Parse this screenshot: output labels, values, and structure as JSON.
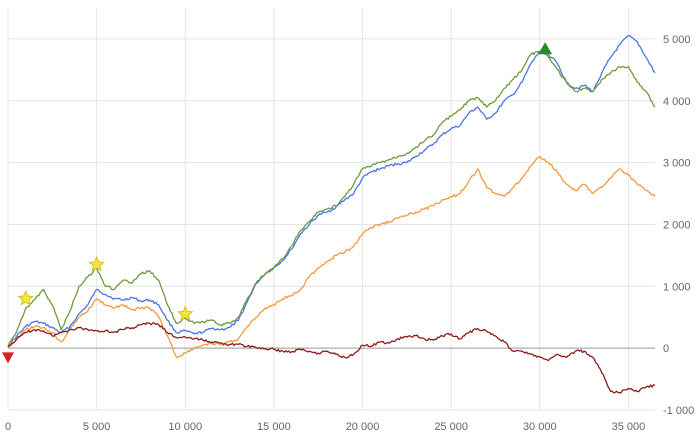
{
  "chart_data": {
    "type": "line",
    "title": "",
    "xlabel": "",
    "ylabel": "",
    "xlim": [
      0,
      36500
    ],
    "ylim": [
      -1000,
      5500
    ],
    "grid": true,
    "legend": "none",
    "x_ticks": [
      {
        "value": 0,
        "label": "0"
      },
      {
        "value": 5000,
        "label": "5 000"
      },
      {
        "value": 10000,
        "label": "10 000"
      },
      {
        "value": 15000,
        "label": "15 000"
      },
      {
        "value": 20000,
        "label": "20 000"
      },
      {
        "value": 25000,
        "label": "25 000"
      },
      {
        "value": 30000,
        "label": "30 000"
      },
      {
        "value": 35000,
        "label": "35 000"
      }
    ],
    "y_ticks": [
      {
        "value": 5000,
        "label": "5 000"
      },
      {
        "value": 4000,
        "label": "4 000"
      },
      {
        "value": 3000,
        "label": "3 000"
      },
      {
        "value": 2000,
        "label": "2 000"
      },
      {
        "value": 1000,
        "label": "1 000"
      },
      {
        "value": 0,
        "label": "0"
      },
      {
        "value": -1000,
        "label": "-1 000"
      }
    ],
    "series": [
      {
        "color": "#4a76e8",
        "points": [
          [
            0,
            20
          ],
          [
            500,
            200
          ],
          [
            1000,
            350
          ],
          [
            1500,
            430
          ],
          [
            2000,
            400
          ],
          [
            2500,
            330
          ],
          [
            3000,
            250
          ],
          [
            3500,
            350
          ],
          [
            4000,
            550
          ],
          [
            4500,
            700
          ],
          [
            5000,
            950
          ],
          [
            5500,
            870
          ],
          [
            6000,
            800
          ],
          [
            6500,
            780
          ],
          [
            7000,
            820
          ],
          [
            7500,
            760
          ],
          [
            8000,
            780
          ],
          [
            8500,
            700
          ],
          [
            9000,
            450
          ],
          [
            9500,
            250
          ],
          [
            10000,
            280
          ],
          [
            10500,
            230
          ],
          [
            11000,
            260
          ],
          [
            11500,
            320
          ],
          [
            12000,
            300
          ],
          [
            12500,
            330
          ],
          [
            13000,
            450
          ],
          [
            13500,
            750
          ],
          [
            14000,
            1050
          ],
          [
            14500,
            1200
          ],
          [
            15000,
            1300
          ],
          [
            15500,
            1420
          ],
          [
            16000,
            1600
          ],
          [
            16500,
            1850
          ],
          [
            17000,
            2000
          ],
          [
            17500,
            2150
          ],
          [
            18000,
            2200
          ],
          [
            18500,
            2280
          ],
          [
            19000,
            2400
          ],
          [
            19500,
            2500
          ],
          [
            20000,
            2750
          ],
          [
            20500,
            2850
          ],
          [
            21000,
            2900
          ],
          [
            21500,
            2950
          ],
          [
            22000,
            2980
          ],
          [
            22500,
            3000
          ],
          [
            23000,
            3100
          ],
          [
            23500,
            3200
          ],
          [
            24000,
            3300
          ],
          [
            24500,
            3450
          ],
          [
            25000,
            3550
          ],
          [
            25500,
            3600
          ],
          [
            26000,
            3800
          ],
          [
            26500,
            3900
          ],
          [
            27000,
            3700
          ],
          [
            27500,
            3800
          ],
          [
            28000,
            4000
          ],
          [
            28500,
            4100
          ],
          [
            29000,
            4300
          ],
          [
            29500,
            4600
          ],
          [
            30000,
            4800
          ],
          [
            30500,
            4750
          ],
          [
            31000,
            4600
          ],
          [
            31500,
            4300
          ],
          [
            32000,
            4200
          ],
          [
            32500,
            4250
          ],
          [
            33000,
            4150
          ],
          [
            33500,
            4450
          ],
          [
            34000,
            4700
          ],
          [
            34500,
            4900
          ],
          [
            35000,
            5050
          ],
          [
            35500,
            4950
          ],
          [
            36000,
            4700
          ],
          [
            36500,
            4450
          ]
        ]
      },
      {
        "color": "#6f9a3e",
        "points": [
          [
            0,
            30
          ],
          [
            500,
            280
          ],
          [
            1000,
            650
          ],
          [
            1500,
            780
          ],
          [
            2000,
            950
          ],
          [
            2500,
            700
          ],
          [
            3000,
            300
          ],
          [
            3500,
            600
          ],
          [
            4000,
            1000
          ],
          [
            4500,
            1150
          ],
          [
            5000,
            1300
          ],
          [
            5500,
            1000
          ],
          [
            6000,
            950
          ],
          [
            6500,
            1100
          ],
          [
            7000,
            1050
          ],
          [
            7500,
            1200
          ],
          [
            8000,
            1250
          ],
          [
            8500,
            1100
          ],
          [
            9000,
            700
          ],
          [
            9500,
            400
          ],
          [
            10000,
            480
          ],
          [
            10500,
            400
          ],
          [
            11000,
            430
          ],
          [
            11500,
            450
          ],
          [
            12000,
            380
          ],
          [
            12500,
            400
          ],
          [
            13000,
            500
          ],
          [
            13500,
            800
          ],
          [
            14000,
            1050
          ],
          [
            14500,
            1200
          ],
          [
            15000,
            1300
          ],
          [
            15500,
            1450
          ],
          [
            16000,
            1650
          ],
          [
            16500,
            1900
          ],
          [
            17000,
            2050
          ],
          [
            17500,
            2200
          ],
          [
            18000,
            2250
          ],
          [
            18500,
            2300
          ],
          [
            19000,
            2450
          ],
          [
            19500,
            2650
          ],
          [
            20000,
            2900
          ],
          [
            20500,
            2950
          ],
          [
            21000,
            3000
          ],
          [
            21500,
            3050
          ],
          [
            22000,
            3100
          ],
          [
            22500,
            3150
          ],
          [
            23000,
            3250
          ],
          [
            23500,
            3350
          ],
          [
            24000,
            3450
          ],
          [
            24500,
            3650
          ],
          [
            25000,
            3750
          ],
          [
            25500,
            3850
          ],
          [
            26000,
            4000
          ],
          [
            26500,
            4050
          ],
          [
            27000,
            3900
          ],
          [
            27500,
            4000
          ],
          [
            28000,
            4200
          ],
          [
            28500,
            4350
          ],
          [
            29000,
            4500
          ],
          [
            29500,
            4750
          ],
          [
            30000,
            4800
          ],
          [
            30500,
            4700
          ],
          [
            31000,
            4500
          ],
          [
            31500,
            4300
          ],
          [
            32000,
            4150
          ],
          [
            32500,
            4200
          ],
          [
            33000,
            4150
          ],
          [
            33500,
            4350
          ],
          [
            34000,
            4450
          ],
          [
            34500,
            4550
          ],
          [
            35000,
            4550
          ],
          [
            35500,
            4300
          ],
          [
            36000,
            4150
          ],
          [
            36500,
            3900
          ]
        ]
      },
      {
        "color": "#f59a3c",
        "points": [
          [
            0,
            10
          ],
          [
            500,
            150
          ],
          [
            1000,
            300
          ],
          [
            1500,
            350
          ],
          [
            2000,
            330
          ],
          [
            2500,
            250
          ],
          [
            3000,
            100
          ],
          [
            3500,
            300
          ],
          [
            4000,
            500
          ],
          [
            4500,
            600
          ],
          [
            5000,
            800
          ],
          [
            5500,
            700
          ],
          [
            6000,
            650
          ],
          [
            6500,
            700
          ],
          [
            7000,
            620
          ],
          [
            7500,
            650
          ],
          [
            8000,
            650
          ],
          [
            8500,
            500
          ],
          [
            9000,
            200
          ],
          [
            9500,
            -150
          ],
          [
            10000,
            -80
          ],
          [
            10500,
            0
          ],
          [
            11000,
            50
          ],
          [
            11500,
            80
          ],
          [
            12000,
            50
          ],
          [
            12500,
            100
          ],
          [
            13000,
            150
          ],
          [
            13500,
            350
          ],
          [
            14000,
            500
          ],
          [
            14500,
            650
          ],
          [
            15000,
            700
          ],
          [
            15500,
            800
          ],
          [
            16000,
            850
          ],
          [
            16500,
            950
          ],
          [
            17000,
            1150
          ],
          [
            17500,
            1300
          ],
          [
            18000,
            1400
          ],
          [
            18500,
            1500
          ],
          [
            19000,
            1550
          ],
          [
            19500,
            1650
          ],
          [
            20000,
            1850
          ],
          [
            20500,
            1950
          ],
          [
            21000,
            2000
          ],
          [
            21500,
            2050
          ],
          [
            22000,
            2100
          ],
          [
            22500,
            2150
          ],
          [
            23000,
            2200
          ],
          [
            23500,
            2250
          ],
          [
            24000,
            2300
          ],
          [
            24500,
            2400
          ],
          [
            25000,
            2450
          ],
          [
            25500,
            2500
          ],
          [
            26000,
            2700
          ],
          [
            26500,
            2900
          ],
          [
            27000,
            2600
          ],
          [
            27500,
            2500
          ],
          [
            28000,
            2450
          ],
          [
            28500,
            2600
          ],
          [
            29000,
            2750
          ],
          [
            29500,
            2950
          ],
          [
            30000,
            3100
          ],
          [
            30500,
            3000
          ],
          [
            31000,
            2850
          ],
          [
            31500,
            2650
          ],
          [
            32000,
            2550
          ],
          [
            32500,
            2650
          ],
          [
            33000,
            2500
          ],
          [
            33500,
            2600
          ],
          [
            34000,
            2750
          ],
          [
            34500,
            2900
          ],
          [
            35000,
            2800
          ],
          [
            35500,
            2650
          ],
          [
            36000,
            2550
          ],
          [
            36500,
            2450
          ]
        ]
      },
      {
        "color": "#8c1c1c",
        "points": [
          [
            0,
            20
          ],
          [
            500,
            150
          ],
          [
            1000,
            250
          ],
          [
            1500,
            300
          ],
          [
            2000,
            280
          ],
          [
            2500,
            200
          ],
          [
            3000,
            250
          ],
          [
            3500,
            300
          ],
          [
            4000,
            330
          ],
          [
            4500,
            300
          ],
          [
            5000,
            280
          ],
          [
            5500,
            280
          ],
          [
            6000,
            260
          ],
          [
            6500,
            300
          ],
          [
            7000,
            330
          ],
          [
            7500,
            380
          ],
          [
            8000,
            400
          ],
          [
            8500,
            380
          ],
          [
            9000,
            250
          ],
          [
            9500,
            170
          ],
          [
            10000,
            180
          ],
          [
            10500,
            150
          ],
          [
            11000,
            130
          ],
          [
            11500,
            100
          ],
          [
            12000,
            80
          ],
          [
            12500,
            60
          ],
          [
            13000,
            60
          ],
          [
            13500,
            30
          ],
          [
            14000,
            10
          ],
          [
            14500,
            -10
          ],
          [
            15000,
            -20
          ],
          [
            15500,
            -50
          ],
          [
            16000,
            -60
          ],
          [
            16500,
            -20
          ],
          [
            17000,
            -50
          ],
          [
            17500,
            -80
          ],
          [
            18000,
            -50
          ],
          [
            18500,
            -100
          ],
          [
            19000,
            -150
          ],
          [
            19500,
            -100
          ],
          [
            20000,
            50
          ],
          [
            20500,
            30
          ],
          [
            21000,
            100
          ],
          [
            21500,
            80
          ],
          [
            22000,
            150
          ],
          [
            22500,
            180
          ],
          [
            23000,
            200
          ],
          [
            23500,
            150
          ],
          [
            24000,
            130
          ],
          [
            24500,
            200
          ],
          [
            25000,
            230
          ],
          [
            25500,
            150
          ],
          [
            26000,
            250
          ],
          [
            26500,
            320
          ],
          [
            27000,
            270
          ],
          [
            27500,
            200
          ],
          [
            28000,
            100
          ],
          [
            28500,
            -50
          ],
          [
            29000,
            -50
          ],
          [
            29500,
            -100
          ],
          [
            30000,
            -150
          ],
          [
            30500,
            -200
          ],
          [
            31000,
            -100
          ],
          [
            31500,
            -150
          ],
          [
            32000,
            -50
          ],
          [
            32500,
            -50
          ],
          [
            33000,
            -150
          ],
          [
            33500,
            -400
          ],
          [
            34000,
            -700
          ],
          [
            34500,
            -720
          ],
          [
            35000,
            -650
          ],
          [
            35500,
            -700
          ],
          [
            36000,
            -630
          ],
          [
            36500,
            -600
          ]
        ]
      }
    ],
    "markers": [
      {
        "shape": "star",
        "x": 1000,
        "y": 800,
        "color": "#f4e63a"
      },
      {
        "shape": "star",
        "x": 5000,
        "y": 1350,
        "color": "#f4e63a"
      },
      {
        "shape": "star",
        "x": 10000,
        "y": 550,
        "color": "#f4e63a"
      },
      {
        "shape": "triangle-down",
        "x": 0,
        "y": -150,
        "color": "#d4202a"
      },
      {
        "shape": "triangle-up",
        "x": 30300,
        "y": 4850,
        "color": "#2a8a2a"
      }
    ]
  }
}
